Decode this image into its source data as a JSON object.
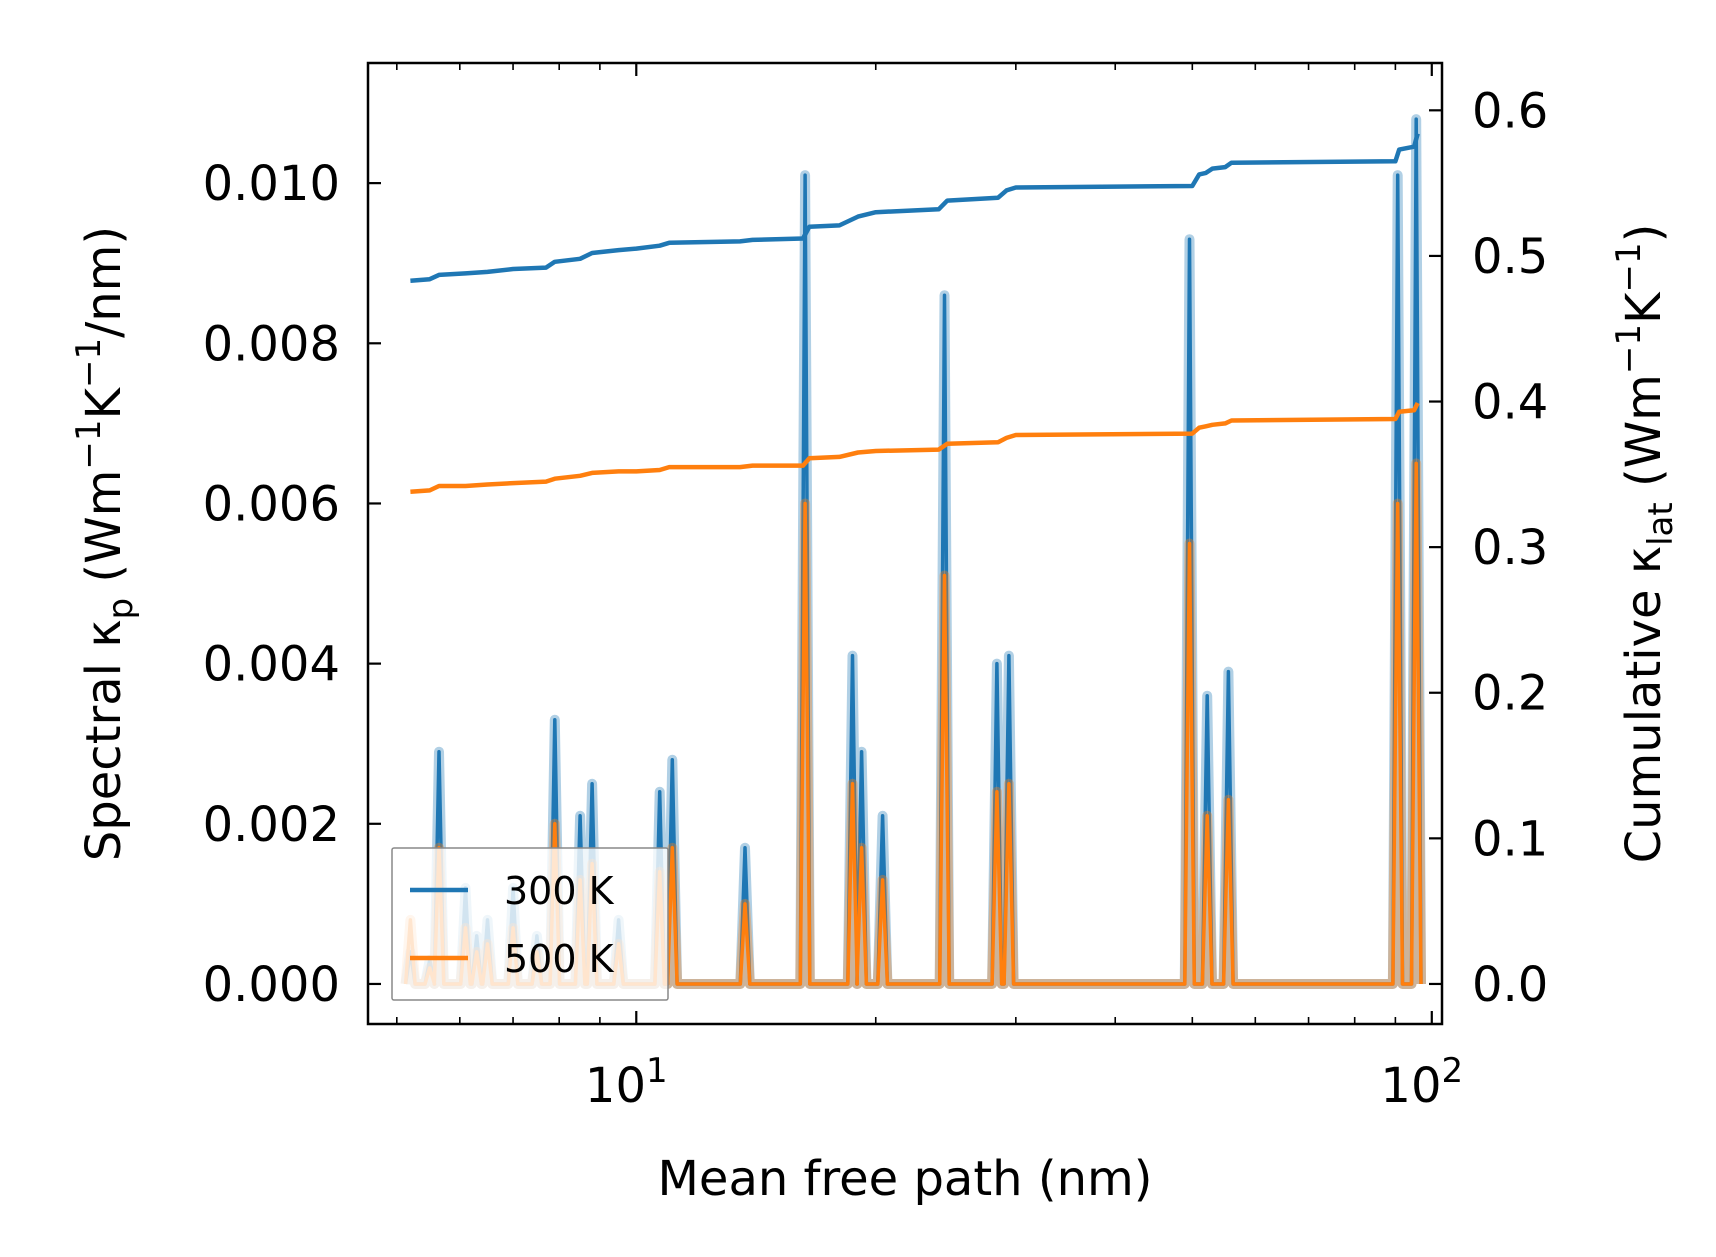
{
  "chart_data": {
    "type": "line",
    "xlabel": "Mean free path (nm)",
    "ylabel_left": {
      "prefix": "Spectral κ",
      "sub": "p",
      "mid": " (Wm",
      "sup1": "−1",
      "mid2": "K",
      "sup2": "−1",
      "suffix": "/nm)"
    },
    "ylabel_right": {
      "prefix": "Cumulative κ",
      "sub": "lat",
      "mid": " (Wm",
      "sup1": "−1",
      "mid2": "K",
      "sup2": "−1",
      "suffix": ")"
    },
    "xscale": "log",
    "xlim": [
      4.6,
      103
    ],
    "ylim_left": [
      -0.0005,
      0.0115
    ],
    "ylim_right": [
      -0.0275,
      0.6325
    ],
    "x_ticks": [
      {
        "value": 10,
        "base": "10",
        "exp": "1"
      },
      {
        "value": 100,
        "base": "10",
        "exp": "2"
      }
    ],
    "left_ticks": [
      {
        "value": 0.0,
        "label": "0.000"
      },
      {
        "value": 0.002,
        "label": "0.002"
      },
      {
        "value": 0.004,
        "label": "0.004"
      },
      {
        "value": 0.006,
        "label": "0.006"
      },
      {
        "value": 0.008,
        "label": "0.008"
      },
      {
        "value": 0.01,
        "label": "0.010"
      }
    ],
    "right_ticks": [
      {
        "value": 0.0,
        "label": "0.0"
      },
      {
        "value": 0.1,
        "label": "0.1"
      },
      {
        "value": 0.2,
        "label": "0.2"
      },
      {
        "value": 0.3,
        "label": "0.3"
      },
      {
        "value": 0.4,
        "label": "0.4"
      },
      {
        "value": 0.5,
        "label": "0.5"
      },
      {
        "value": 0.6,
        "label": "0.6"
      }
    ],
    "legend": {
      "position": "lower-left",
      "entries": [
        "300 K",
        "500 K"
      ]
    },
    "series": [
      {
        "name": "300 K",
        "color": "#1f77b4",
        "axis": "right",
        "kind": "cumulative",
        "points": [
          [
            5.2,
            0.483
          ],
          [
            5.5,
            0.484
          ],
          [
            5.65,
            0.487
          ],
          [
            6.1,
            0.488
          ],
          [
            6.5,
            0.489
          ],
          [
            7.0,
            0.491
          ],
          [
            7.7,
            0.492
          ],
          [
            7.9,
            0.496
          ],
          [
            8.5,
            0.498
          ],
          [
            8.8,
            0.502
          ],
          [
            9.5,
            0.504
          ],
          [
            10.0,
            0.505
          ],
          [
            10.7,
            0.507
          ],
          [
            11.0,
            0.509
          ],
          [
            13.5,
            0.51
          ],
          [
            14.0,
            0.511
          ],
          [
            16.2,
            0.512
          ],
          [
            16.5,
            0.52
          ],
          [
            18.0,
            0.521
          ],
          [
            19.0,
            0.527
          ],
          [
            20.0,
            0.53
          ],
          [
            24.0,
            0.532
          ],
          [
            24.6,
            0.538
          ],
          [
            28.5,
            0.54
          ],
          [
            29.2,
            0.545
          ],
          [
            30.0,
            0.547
          ],
          [
            50.0,
            0.548
          ],
          [
            51.0,
            0.556
          ],
          [
            52.0,
            0.557
          ],
          [
            53.0,
            0.56
          ],
          [
            55.0,
            0.561
          ],
          [
            56.0,
            0.564
          ],
          [
            90.0,
            0.565
          ],
          [
            91.0,
            0.573
          ],
          [
            95.0,
            0.575
          ],
          [
            96.0,
            0.584
          ]
        ]
      },
      {
        "name": "500 K",
        "color": "#ff7f0e",
        "axis": "right",
        "kind": "cumulative",
        "points": [
          [
            5.2,
            0.338
          ],
          [
            5.5,
            0.339
          ],
          [
            5.65,
            0.342
          ],
          [
            6.1,
            0.342
          ],
          [
            6.5,
            0.343
          ],
          [
            7.0,
            0.344
          ],
          [
            7.7,
            0.345
          ],
          [
            7.9,
            0.347
          ],
          [
            8.5,
            0.349
          ],
          [
            8.8,
            0.351
          ],
          [
            9.5,
            0.352
          ],
          [
            10.0,
            0.352
          ],
          [
            10.7,
            0.353
          ],
          [
            11.0,
            0.355
          ],
          [
            13.5,
            0.355
          ],
          [
            14.0,
            0.356
          ],
          [
            16.2,
            0.356
          ],
          [
            16.5,
            0.361
          ],
          [
            18.0,
            0.362
          ],
          [
            19.0,
            0.365
          ],
          [
            20.0,
            0.366
          ],
          [
            24.0,
            0.367
          ],
          [
            24.6,
            0.371
          ],
          [
            28.5,
            0.372
          ],
          [
            29.2,
            0.375
          ],
          [
            30.0,
            0.377
          ],
          [
            50.0,
            0.378
          ],
          [
            51.0,
            0.382
          ],
          [
            52.0,
            0.383
          ],
          [
            53.0,
            0.384
          ],
          [
            55.0,
            0.385
          ],
          [
            56.0,
            0.387
          ],
          [
            90.0,
            0.388
          ],
          [
            91.0,
            0.393
          ],
          [
            95.0,
            0.394
          ],
          [
            96.0,
            0.399
          ]
        ]
      },
      {
        "name": "300 K",
        "color": "#1f77b4",
        "axis": "left",
        "kind": "spectral",
        "peaks": [
          [
            5.2,
            0.0004
          ],
          [
            5.5,
            0.0003
          ],
          [
            5.65,
            0.0029
          ],
          [
            6.1,
            0.0012
          ],
          [
            6.3,
            0.0006
          ],
          [
            6.5,
            0.0008
          ],
          [
            7.0,
            0.0012
          ],
          [
            7.5,
            0.0006
          ],
          [
            7.9,
            0.0033
          ],
          [
            8.5,
            0.0021
          ],
          [
            8.8,
            0.0025
          ],
          [
            9.5,
            0.0008
          ],
          [
            10.7,
            0.0024
          ],
          [
            11.1,
            0.0028
          ],
          [
            13.7,
            0.0017
          ],
          [
            16.3,
            0.0101
          ],
          [
            18.7,
            0.0041
          ],
          [
            19.2,
            0.0029
          ],
          [
            20.4,
            0.0021
          ],
          [
            24.4,
            0.0086
          ],
          [
            28.4,
            0.004
          ],
          [
            29.4,
            0.0041
          ],
          [
            49.6,
            0.0093
          ],
          [
            52.2,
            0.0036
          ],
          [
            55.5,
            0.0039
          ],
          [
            90.6,
            0.0101
          ],
          [
            95.6,
            0.0108
          ]
        ]
      },
      {
        "name": "500 K",
        "color": "#ff7f0e",
        "axis": "left",
        "kind": "spectral",
        "peaks": [
          [
            5.2,
            0.0008
          ],
          [
            5.5,
            0.0002
          ],
          [
            5.65,
            0.0017
          ],
          [
            6.1,
            0.0007
          ],
          [
            6.3,
            0.0004
          ],
          [
            6.5,
            0.0005
          ],
          [
            7.0,
            0.0007
          ],
          [
            7.5,
            0.0004
          ],
          [
            7.9,
            0.002
          ],
          [
            8.5,
            0.0013
          ],
          [
            8.8,
            0.0015
          ],
          [
            9.5,
            0.0005
          ],
          [
            10.7,
            0.0014
          ],
          [
            11.1,
            0.0017
          ],
          [
            13.7,
            0.001
          ],
          [
            16.3,
            0.006
          ],
          [
            18.7,
            0.0025
          ],
          [
            19.2,
            0.0017
          ],
          [
            20.4,
            0.0013
          ],
          [
            24.4,
            0.0051
          ],
          [
            28.4,
            0.0024
          ],
          [
            29.4,
            0.0025
          ],
          [
            49.6,
            0.0055
          ],
          [
            52.2,
            0.0021
          ],
          [
            55.5,
            0.0023
          ],
          [
            90.6,
            0.006
          ],
          [
            95.6,
            0.0065
          ]
        ]
      }
    ]
  }
}
